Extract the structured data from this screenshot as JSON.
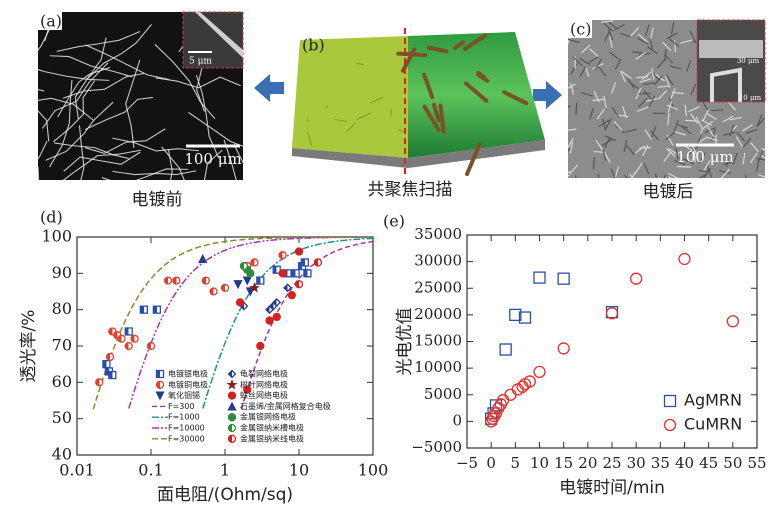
{
  "panels": {
    "a": {
      "label": "(a)",
      "inset_scale": "5 μm",
      "scale": "100 μm",
      "caption": "电镀前"
    },
    "b": {
      "label": "(b)",
      "caption": "共聚焦扫描"
    },
    "c": {
      "label": "(c)",
      "inset_scale_top": "30 μm",
      "inset_scale_bottom": "10 μm",
      "scale": "100 μm",
      "caption": "电镀后"
    }
  },
  "chart_data": [
    {
      "type": "scatter",
      "label": "(d)",
      "xlabel": "面电阻/(Ohm/sq)",
      "ylabel": "透光率/%",
      "xscale": "log",
      "xlim": [
        0.01,
        100
      ],
      "ylim": [
        40,
        100
      ],
      "xticks": [
        0.01,
        0.1,
        1,
        10,
        100
      ],
      "yticks": [
        40,
        50,
        60,
        70,
        80,
        90,
        100
      ],
      "legend": "lower center",
      "series": [
        {
          "name": "电镀银电极",
          "color": "#2b4fa8",
          "marker": "square",
          "fill": "half",
          "x": [
            0.025,
            0.027,
            0.03,
            0.05,
            0.08,
            0.12,
            3,
            5,
            7,
            9,
            11,
            12,
            13
          ],
          "values": [
            65,
            63,
            62,
            74,
            80,
            80,
            88,
            91,
            90,
            90,
            92,
            93,
            90
          ]
        },
        {
          "name": "电镀铜电极",
          "color": "#e0402e",
          "marker": "circle",
          "fill": "half",
          "x": [
            0.02,
            0.028,
            0.03,
            0.035,
            0.04,
            0.05,
            0.06,
            0.1,
            0.17,
            0.22,
            0.55,
            0.7,
            1,
            2,
            2.5,
            6
          ],
          "values": [
            60,
            67,
            74,
            73,
            72,
            70,
            72,
            70,
            88,
            88,
            88,
            85,
            86,
            92,
            93,
            95
          ]
        },
        {
          "name": "氧化铟锡",
          "color": "#1f3a93",
          "marker": "tri-down",
          "fill": "full",
          "x": [
            1.5,
            2,
            2.2
          ],
          "values": [
            87,
            88,
            85
          ]
        },
        {
          "name": "龟裂网络电极",
          "color": "#2a3a8c",
          "marker": "diamond",
          "fill": "half",
          "x": [
            1.8,
            4,
            4.5,
            5,
            7
          ],
          "values": [
            81,
            80,
            81,
            82,
            86
          ]
        },
        {
          "name": "树叶网络电极",
          "color": "#8b1a1a",
          "marker": "star",
          "fill": "full",
          "x": [
            2.5
          ],
          "values": [
            86
          ]
        },
        {
          "name": "蛛丝网络电极",
          "color": "#d62020",
          "marker": "circle",
          "fill": "full",
          "x": [
            1.6,
            2,
            3,
            4,
            5,
            6,
            8,
            10
          ],
          "values": [
            82,
            58,
            70,
            77,
            78,
            90,
            84,
            96
          ]
        },
        {
          "name": "石墨烯/金属网格复合电极",
          "color": "#2a3a8c",
          "marker": "tri-up",
          "fill": "full",
          "x": [
            0.5
          ],
          "values": [
            94
          ]
        },
        {
          "name": "金属银网络电极",
          "color": "#2e8b3a",
          "marker": "circle",
          "fill": "full",
          "x": [
            2,
            2.2
          ],
          "values": [
            91,
            90
          ]
        },
        {
          "name": "金属银纳米槽电极",
          "color": "#2e8b3a",
          "marker": "circle",
          "fill": "half",
          "x": [
            1.8
          ],
          "values": [
            92
          ]
        },
        {
          "name": "金属银纳米线电极",
          "color": "#d62020",
          "marker": "circle",
          "fill": "half",
          "x": [
            10,
            18
          ],
          "values": [
            87,
            93
          ]
        }
      ],
      "curves": [
        {
          "name": "F=300",
          "F": 300,
          "color": "#9933cc",
          "dash": "5 3"
        },
        {
          "name": "F=1000",
          "F": 1000,
          "color": "#1f8f8f",
          "dash": "7 2 2 2"
        },
        {
          "name": "F=10000",
          "F": 10000,
          "color": "#b030b0",
          "dash": "7 2 2 2 2 2"
        },
        {
          "name": "F=30000",
          "F": 30000,
          "color": "#8a8a2a",
          "dash": "6 3"
        }
      ]
    },
    {
      "type": "scatter",
      "label": "(e)",
      "xlabel": "电镀时间/min",
      "ylabel": "光电优值",
      "xscale": "linear",
      "xlim": [
        -5,
        55
      ],
      "ylim": [
        -5000,
        35000
      ],
      "xticks": [
        {
          "value": -5,
          "label": "−5"
        },
        0,
        5,
        10,
        15,
        20,
        25,
        30,
        35,
        40,
        45,
        50,
        55
      ],
      "yticks": [
        {
          "value": -5000,
          "label": "−5000"
        },
        0,
        5000,
        10000,
        15000,
        20000,
        25000,
        30000,
        35000
      ],
      "legend": "lower right",
      "series": [
        {
          "name": "AgMRN",
          "color": "#2b4fa8",
          "marker": "square",
          "fill": "none",
          "x": [
            0,
            0.5,
            1,
            3,
            5,
            7,
            10,
            15,
            25
          ],
          "values": [
            500,
            1500,
            3000,
            13500,
            20000,
            19500,
            27000,
            26800,
            20500
          ]
        },
        {
          "name": "CuMRN",
          "color": "#e8302a",
          "marker": "circle",
          "fill": "none",
          "x": [
            0,
            0.3,
            0.5,
            1,
            1.5,
            2,
            2.5,
            4,
            5.5,
            6.5,
            7,
            8,
            10,
            15,
            25,
            30,
            40,
            50
          ],
          "values": [
            0,
            500,
            1000,
            1500,
            2500,
            3200,
            4000,
            5000,
            6000,
            6500,
            7000,
            7500,
            9300,
            13700,
            20300,
            26800,
            30500,
            18800
          ]
        }
      ]
    }
  ]
}
